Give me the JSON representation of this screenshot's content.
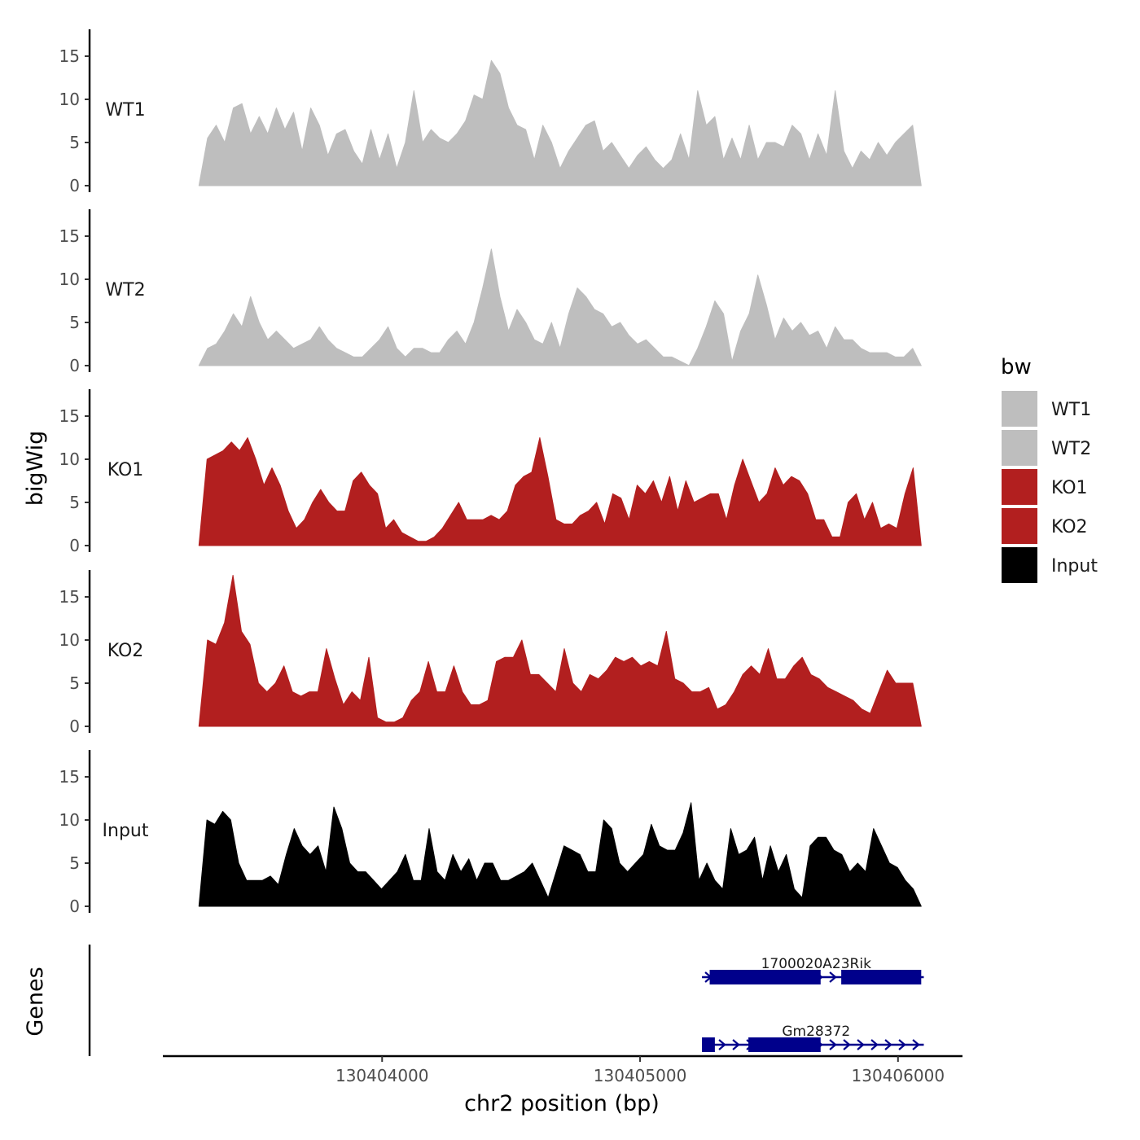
{
  "chart_data": {
    "type": "area",
    "subtype": "genome-track-coverage",
    "ylabel": "bigWig",
    "xlabel": "chr2 position (bp)",
    "ylim": [
      0,
      18
    ],
    "yticks": [
      0,
      5,
      10,
      15
    ],
    "xlim": [
      130403150,
      130406250
    ],
    "xticks": [
      130404000,
      130405000,
      130406000
    ],
    "xtick_labels": [
      "130404000",
      "130405000",
      "130406000"
    ],
    "x_start": 130403290,
    "x_end": 130406090,
    "series": [
      {
        "name": "WT1",
        "color": "#bebebe",
        "values": [
          0,
          5.5,
          7,
          5,
          9,
          9.5,
          6,
          8,
          6,
          9,
          6.5,
          8.5,
          4,
          9,
          7,
          3.5,
          6,
          6.5,
          4,
          2.5,
          6.5,
          3,
          6,
          2,
          5,
          11,
          5,
          6.5,
          5.5,
          5,
          6,
          7.5,
          10.5,
          10,
          14.5,
          13,
          9,
          7,
          6.5,
          3,
          7,
          5,
          2,
          4,
          5.5,
          7,
          7.5,
          4,
          5,
          3.5,
          2,
          3.5,
          4.5,
          3,
          2,
          3,
          6,
          3,
          11,
          7,
          8,
          3,
          5.5,
          3,
          7,
          3,
          5,
          5,
          4.5,
          7,
          6,
          3,
          6,
          3.5,
          11,
          4,
          2,
          4,
          3,
          5,
          3.5,
          5,
          6,
          7,
          0
        ]
      },
      {
        "name": "WT2",
        "color": "#bebebe",
        "values": [
          0,
          2,
          2.5,
          4,
          6,
          4.5,
          8,
          5,
          3,
          4,
          3,
          2,
          2.5,
          3,
          4.5,
          3,
          2,
          1.5,
          1,
          1,
          2,
          3,
          4.5,
          2,
          1,
          2,
          2,
          1.5,
          1.5,
          3,
          4,
          2.5,
          5,
          9,
          13.5,
          8,
          4,
          6.5,
          5,
          3,
          2.5,
          5,
          2,
          6,
          9,
          8,
          6.5,
          6,
          4.5,
          5,
          3.5,
          2.5,
          3,
          2,
          1,
          1,
          0.5,
          0,
          2,
          4.5,
          7.5,
          6,
          0.5,
          4,
          6,
          10.5,
          7,
          3,
          5.5,
          4,
          5,
          3.5,
          4,
          2,
          4.5,
          3,
          3,
          2,
          1.5,
          1.5,
          1.5,
          1,
          1,
          2,
          0
        ]
      },
      {
        "name": "KO1",
        "color": "#b21f1f",
        "values": [
          0,
          10,
          10.5,
          11,
          12,
          11,
          12.5,
          10,
          7,
          9,
          7,
          4,
          2,
          3,
          5,
          6.5,
          5,
          4,
          4,
          7.5,
          8.5,
          7,
          6,
          2,
          3,
          1.5,
          1,
          0.5,
          0.5,
          1,
          2,
          3.5,
          5,
          3,
          3,
          3,
          3.5,
          3,
          4,
          7,
          8,
          8.5,
          12.5,
          8,
          3,
          2.5,
          2.5,
          3.5,
          4,
          5,
          2.5,
          6,
          5.5,
          3,
          7,
          6,
          7.5,
          5,
          8,
          4,
          7.5,
          5,
          5.5,
          6,
          6,
          3,
          7,
          10,
          7.5,
          5,
          6,
          9,
          7,
          8,
          7.5,
          6,
          3,
          3,
          1,
          1,
          5,
          6,
          3,
          5,
          2,
          2.5,
          2,
          6,
          9,
          0
        ]
      },
      {
        "name": "KO2",
        "color": "#b21f1f",
        "values": [
          0,
          10,
          9.5,
          12,
          17.5,
          11,
          9.5,
          5,
          4,
          5,
          7,
          4,
          3.5,
          4,
          4,
          9,
          5.5,
          2.5,
          4,
          3,
          8,
          1,
          0.5,
          0.5,
          1,
          3,
          4,
          7.5,
          4,
          4,
          7,
          4,
          2.5,
          2.5,
          3,
          7.5,
          8,
          8,
          10,
          6,
          6,
          5,
          4,
          9,
          5,
          4,
          6,
          5.5,
          6.5,
          8,
          7.5,
          8,
          7,
          7.5,
          7,
          11,
          5.5,
          5,
          4,
          4,
          4.5,
          2,
          2.5,
          4,
          6,
          7,
          6,
          9,
          5.5,
          5.5,
          7,
          8,
          6,
          5.5,
          4.5,
          4,
          3.5,
          3,
          2,
          1.5,
          4,
          6.5,
          5,
          5,
          5,
          0
        ]
      },
      {
        "name": "Input",
        "color": "#000000",
        "values": [
          0,
          10,
          9.5,
          11,
          10,
          5,
          3,
          3,
          3,
          3.5,
          2.5,
          6,
          9,
          7,
          6,
          7,
          4,
          11.5,
          9,
          5,
          4,
          4,
          3,
          2,
          3,
          4,
          6,
          3,
          3,
          9,
          4,
          3,
          6,
          4,
          5.5,
          3,
          5,
          5,
          3,
          3,
          3.5,
          4,
          5,
          3,
          1,
          4,
          7,
          6.5,
          6,
          4,
          4,
          10,
          9,
          5,
          4,
          5,
          6,
          9.5,
          7,
          6.5,
          6.5,
          8.5,
          12,
          3,
          5,
          3,
          2,
          9,
          6,
          6.5,
          8,
          3,
          7,
          4,
          6,
          2,
          1,
          7,
          8,
          8,
          6.5,
          6,
          4,
          5,
          4,
          9,
          7,
          5,
          4.5,
          3,
          2,
          0
        ]
      }
    ],
    "legend": {
      "title": "bw",
      "entries": [
        "WT1",
        "WT2",
        "KO1",
        "KO2",
        "Input"
      ],
      "position": "right"
    },
    "gene_track": {
      "label": "Genes",
      "color": "#00008b",
      "genes": [
        {
          "name": "1700020A23Rik",
          "start": 130405240,
          "end": 130406100,
          "exons": [
            [
              130405270,
              130405700
            ],
            [
              130405780,
              130406090
            ]
          ],
          "strand": "+"
        },
        {
          "name": "Gm28372",
          "start": 130405240,
          "end": 130406100,
          "exons": [
            [
              130405240,
              130405290
            ],
            [
              130405420,
              130405700
            ]
          ],
          "strand": "+"
        }
      ]
    }
  }
}
